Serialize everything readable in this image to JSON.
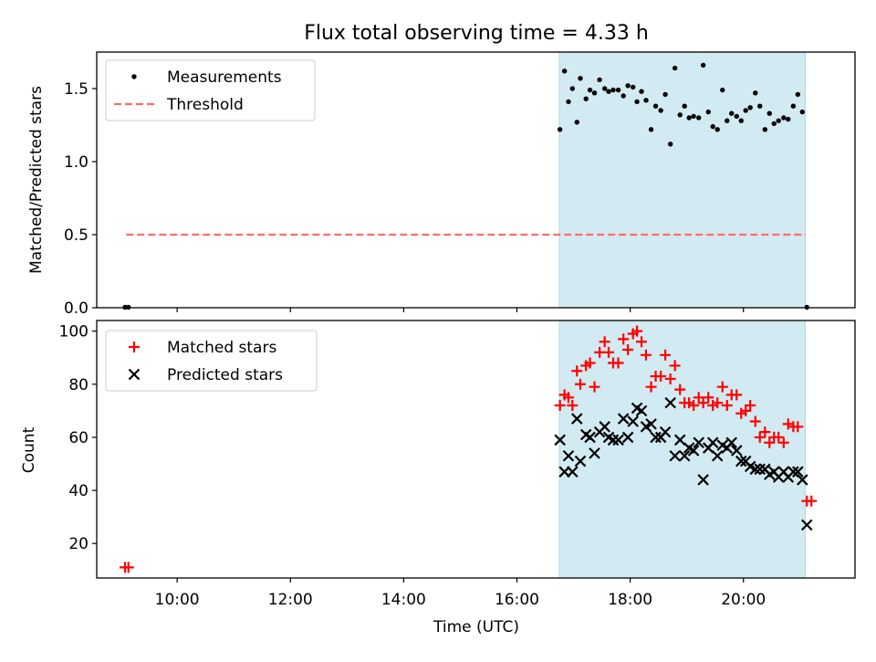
{
  "title": "Flux total observing time = 4.33 h",
  "xlabel": "Time (UTC)",
  "colors": {
    "band": "#add8e6",
    "threshold": "#ff6b6b",
    "measurements": "#000000",
    "matched": "#ff0000",
    "predicted": "#000000"
  },
  "chart_data": [
    {
      "type": "scatter",
      "panel": "top",
      "ylabel": "Matched/Predicted stars",
      "xlim": [
        8.58,
        21.97
      ],
      "ylim": [
        0.0,
        1.75
      ],
      "yticks": [
        0.0,
        0.5,
        1.0,
        1.5
      ],
      "ytick_labels": [
        "0.0",
        "0.5",
        "1.0",
        "1.5"
      ],
      "band_x": [
        16.75,
        21.09
      ],
      "legend_position": "upper left",
      "threshold": {
        "name": "Threshold",
        "y": 0.5,
        "x": [
          9.1,
          21.1
        ],
        "style": "dashed"
      },
      "series": [
        {
          "name": "Measurements",
          "marker": "dot",
          "x": [
            9.08,
            9.14,
            16.76,
            16.84,
            16.91,
            16.98,
            17.06,
            17.12,
            17.22,
            17.29,
            17.37,
            17.46,
            17.55,
            17.62,
            17.7,
            17.79,
            17.88,
            17.96,
            18.05,
            18.12,
            18.2,
            18.28,
            18.37,
            18.45,
            18.54,
            18.62,
            18.71,
            18.79,
            18.88,
            18.96,
            19.04,
            19.12,
            19.21,
            19.29,
            19.38,
            19.46,
            19.54,
            19.63,
            19.71,
            19.79,
            19.88,
            19.96,
            20.04,
            20.12,
            20.21,
            20.29,
            20.38,
            20.46,
            20.54,
            20.62,
            20.71,
            20.79,
            20.88,
            20.96,
            21.04,
            21.12
          ],
          "y": [
            0.0,
            0.0,
            1.22,
            1.62,
            1.41,
            1.5,
            1.27,
            1.57,
            1.43,
            1.49,
            1.47,
            1.56,
            1.5,
            1.48,
            1.49,
            1.49,
            1.45,
            1.52,
            1.51,
            1.41,
            1.48,
            1.42,
            1.22,
            1.38,
            1.35,
            1.46,
            1.12,
            1.64,
            1.32,
            1.38,
            1.3,
            1.31,
            1.3,
            1.66,
            1.34,
            1.24,
            1.22,
            1.49,
            1.28,
            1.33,
            1.31,
            1.28,
            1.35,
            1.37,
            1.47,
            1.38,
            1.22,
            1.33,
            1.26,
            1.28,
            1.3,
            1.29,
            1.38,
            1.46,
            1.34,
            0.0
          ]
        }
      ]
    },
    {
      "type": "scatter",
      "panel": "bottom",
      "ylabel": "Count",
      "xlim": [
        8.58,
        21.97
      ],
      "ylim": [
        7,
        104
      ],
      "yticks": [
        20,
        40,
        60,
        80,
        100
      ],
      "ytick_labels": [
        "20",
        "40",
        "60",
        "80",
        "100"
      ],
      "xticks": [
        10,
        12,
        14,
        16,
        18,
        20
      ],
      "xtick_labels": [
        "10:00",
        "12:00",
        "14:00",
        "16:00",
        "18:00",
        "20:00"
      ],
      "band_x": [
        16.75,
        21.09
      ],
      "legend_position": "upper left",
      "x": [
        9.08,
        9.14,
        16.76,
        16.84,
        16.91,
        16.98,
        17.06,
        17.12,
        17.22,
        17.29,
        17.37,
        17.46,
        17.55,
        17.62,
        17.7,
        17.79,
        17.88,
        17.96,
        18.05,
        18.12,
        18.2,
        18.28,
        18.37,
        18.45,
        18.54,
        18.62,
        18.71,
        18.79,
        18.88,
        18.96,
        19.04,
        19.12,
        19.21,
        19.29,
        19.38,
        19.46,
        19.54,
        19.63,
        19.71,
        19.79,
        19.88,
        19.96,
        20.04,
        20.12,
        20.21,
        20.29,
        20.38,
        20.46,
        20.54,
        20.62,
        20.71,
        20.79,
        20.88,
        20.96,
        21.04,
        21.12,
        21.2
      ],
      "series": [
        {
          "name": "Matched stars",
          "marker": "plus",
          "y": [
            11,
            11,
            72,
            76,
            75,
            72,
            85,
            80,
            87,
            88,
            79,
            92,
            96,
            92,
            88,
            88,
            97,
            93,
            99,
            100,
            96,
            91,
            79,
            83,
            83,
            91,
            82,
            87,
            78,
            73,
            73,
            72,
            75,
            73,
            75,
            72,
            73,
            79,
            72,
            76,
            76,
            69,
            70,
            72,
            66,
            60,
            62,
            58,
            60,
            60,
            58,
            65,
            64,
            64,
            null,
            36,
            36
          ]
        },
        {
          "name": "Predicted stars",
          "marker": "x",
          "y": [
            null,
            null,
            59,
            47,
            53,
            47,
            67,
            51,
            61,
            60,
            54,
            62,
            64,
            60,
            59,
            59,
            67,
            60,
            66,
            71,
            70,
            64,
            65,
            60,
            60,
            62,
            73,
            53,
            59,
            53,
            56,
            55,
            58,
            44,
            56,
            58,
            53,
            57,
            56,
            58,
            55,
            51,
            51,
            49,
            48,
            48,
            48,
            46,
            47,
            45,
            47,
            45,
            47,
            47,
            44,
            27,
            null
          ]
        }
      ]
    }
  ]
}
